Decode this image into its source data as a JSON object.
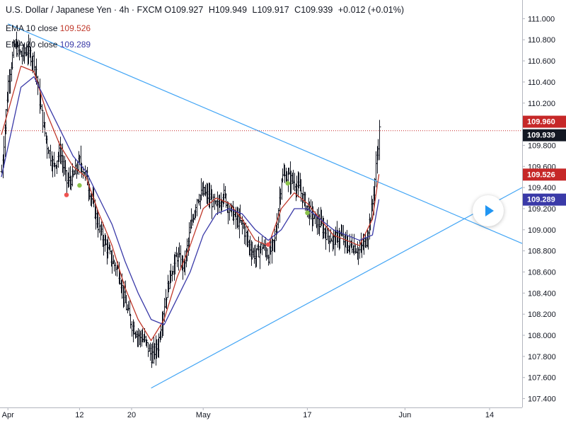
{
  "header": {
    "symbol_title": "U.S. Dollar / Japanese Yen · 4h · FXCM",
    "ohlc": [
      {
        "label": "O",
        "value": "109.927"
      },
      {
        "label": "H",
        "value": "109.949"
      },
      {
        "label": "L",
        "value": "109.917"
      },
      {
        "label": "C",
        "value": "109.939"
      }
    ],
    "change": "+0.012 (+0.01%)"
  },
  "indicators": [
    {
      "label": "EMA 10 close",
      "value": "109.526",
      "color": "#c0392b"
    },
    {
      "label": "EMA 20 close",
      "value": "109.289",
      "color": "#3a3aa8"
    }
  ],
  "badges": [
    {
      "text": "109.960",
      "price": 109.96,
      "bg": "#c62828",
      "fg": "#ffffff"
    },
    {
      "text": "109.939",
      "price": 109.939,
      "bg": "#131722",
      "fg": "#ffffff"
    },
    {
      "text": "109.526",
      "price": 109.526,
      "bg": "#c62828",
      "fg": "#ffffff"
    },
    {
      "text": "109.289",
      "price": 109.289,
      "bg": "#3a3aa8",
      "fg": "#ffffff"
    }
  ],
  "chart_data": {
    "type": "line",
    "title": "U.S. Dollar / Japanese Yen · 4h · FXCM",
    "xlabel": "",
    "ylabel": "",
    "ylim": [
      107.35,
      111.15
    ],
    "y_ticks": [
      111.0,
      110.8,
      110.6,
      110.4,
      110.2,
      110.0,
      109.8,
      109.6,
      109.4,
      109.2,
      109.0,
      108.8,
      108.6,
      108.4,
      108.2,
      108.0,
      107.8,
      107.6,
      107.4
    ],
    "y_tick_labels": [
      "111.000",
      "110.800",
      "110.600",
      "110.400",
      "110.200",
      "110.000",
      "109.800",
      "109.600",
      "109.400",
      "109.200",
      "109.000",
      "108.800",
      "108.600",
      "108.400",
      "108.200",
      "108.000",
      "107.800",
      "107.600",
      "107.400"
    ],
    "x_range": [
      "2021-03-31",
      "2021-06-19"
    ],
    "x_ticks": [
      {
        "date": "2021-04-01",
        "label": "Apr"
      },
      {
        "date": "2021-04-12",
        "label": "12"
      },
      {
        "date": "2021-04-20",
        "label": "20"
      },
      {
        "date": "2021-05-01",
        "label": "May"
      },
      {
        "date": "2021-05-17",
        "label": "17"
      },
      {
        "date": "2021-06-01",
        "label": "Jun"
      },
      {
        "date": "2021-06-14",
        "label": "14"
      }
    ],
    "grid": false,
    "price_path": [
      {
        "date": "2021-03-31",
        "close": 109.55
      },
      {
        "date": "2021-04-01",
        "close": 110.4
      },
      {
        "date": "2021-04-02",
        "close": 110.75
      },
      {
        "date": "2021-04-03",
        "close": 110.65
      },
      {
        "date": "2021-04-04",
        "close": 110.7
      },
      {
        "date": "2021-04-05",
        "close": 110.6
      },
      {
        "date": "2021-04-06",
        "close": 110.15
      },
      {
        "date": "2021-04-07",
        "close": 109.8
      },
      {
        "date": "2021-04-08",
        "close": 109.6
      },
      {
        "date": "2021-04-09",
        "close": 109.75
      },
      {
        "date": "2021-04-10",
        "close": 109.45
      },
      {
        "date": "2021-04-11",
        "close": 109.5
      },
      {
        "date": "2021-04-12",
        "close": 109.65
      },
      {
        "date": "2021-04-13",
        "close": 109.5
      },
      {
        "date": "2021-04-14",
        "close": 109.25
      },
      {
        "date": "2021-04-15",
        "close": 109.0
      },
      {
        "date": "2021-04-16",
        "close": 108.85
      },
      {
        "date": "2021-04-17",
        "close": 108.7
      },
      {
        "date": "2021-04-18",
        "close": 108.6
      },
      {
        "date": "2021-04-19",
        "close": 108.3
      },
      {
        "date": "2021-04-20",
        "close": 108.1
      },
      {
        "date": "2021-04-21",
        "close": 108.0
      },
      {
        "date": "2021-04-22",
        "close": 107.95
      },
      {
        "date": "2021-04-23",
        "close": 107.8
      },
      {
        "date": "2021-04-24",
        "close": 107.9
      },
      {
        "date": "2021-04-25",
        "close": 108.3
      },
      {
        "date": "2021-04-26",
        "close": 108.6
      },
      {
        "date": "2021-04-27",
        "close": 108.75
      },
      {
        "date": "2021-04-28",
        "close": 108.65
      },
      {
        "date": "2021-04-29",
        "close": 109.0
      },
      {
        "date": "2021-04-30",
        "close": 109.3
      },
      {
        "date": "2021-05-01",
        "close": 109.35
      },
      {
        "date": "2021-05-02",
        "close": 109.3
      },
      {
        "date": "2021-05-03",
        "close": 109.2
      },
      {
        "date": "2021-05-04",
        "close": 109.35
      },
      {
        "date": "2021-05-05",
        "close": 109.2
      },
      {
        "date": "2021-05-06",
        "close": 109.1
      },
      {
        "date": "2021-05-07",
        "close": 109.05
      },
      {
        "date": "2021-05-08",
        "close": 108.85
      },
      {
        "date": "2021-05-09",
        "close": 108.75
      },
      {
        "date": "2021-05-10",
        "close": 108.85
      },
      {
        "date": "2021-05-11",
        "close": 108.75
      },
      {
        "date": "2021-05-12",
        "close": 108.9
      },
      {
        "date": "2021-05-13",
        "close": 109.5
      },
      {
        "date": "2021-05-14",
        "close": 109.5
      },
      {
        "date": "2021-05-15",
        "close": 109.45
      },
      {
        "date": "2021-05-16",
        "close": 109.35
      },
      {
        "date": "2021-05-17",
        "close": 109.2
      },
      {
        "date": "2021-05-18",
        "close": 109.1
      },
      {
        "date": "2021-05-19",
        "close": 109.05
      },
      {
        "date": "2021-05-20",
        "close": 108.95
      },
      {
        "date": "2021-05-21",
        "close": 108.9
      },
      {
        "date": "2021-05-22",
        "close": 108.95
      },
      {
        "date": "2021-05-23",
        "close": 108.85
      },
      {
        "date": "2021-05-24",
        "close": 108.85
      },
      {
        "date": "2021-05-25",
        "close": 108.8
      },
      {
        "date": "2021-05-26",
        "close": 108.9
      },
      {
        "date": "2021-05-27",
        "close": 109.25
      },
      {
        "date": "2021-05-28",
        "close": 109.939
      }
    ],
    "series": [
      {
        "name": "EMA 10 close",
        "color": "#c0392b",
        "values": [
          {
            "date": "2021-03-31",
            "value": 109.9
          },
          {
            "date": "2021-04-03",
            "value": 110.55
          },
          {
            "date": "2021-04-05",
            "value": 110.5
          },
          {
            "date": "2021-04-07",
            "value": 110.1
          },
          {
            "date": "2021-04-09",
            "value": 109.8
          },
          {
            "date": "2021-04-11",
            "value": 109.6
          },
          {
            "date": "2021-04-13",
            "value": 109.5
          },
          {
            "date": "2021-04-15",
            "value": 109.15
          },
          {
            "date": "2021-04-17",
            "value": 108.85
          },
          {
            "date": "2021-04-19",
            "value": 108.45
          },
          {
            "date": "2021-04-21",
            "value": 108.15
          },
          {
            "date": "2021-04-23",
            "value": 107.95
          },
          {
            "date": "2021-04-25",
            "value": 108.15
          },
          {
            "date": "2021-04-27",
            "value": 108.55
          },
          {
            "date": "2021-04-29",
            "value": 108.85
          },
          {
            "date": "2021-05-01",
            "value": 109.2
          },
          {
            "date": "2021-05-03",
            "value": 109.3
          },
          {
            "date": "2021-05-05",
            "value": 109.25
          },
          {
            "date": "2021-05-07",
            "value": 109.1
          },
          {
            "date": "2021-05-09",
            "value": 108.9
          },
          {
            "date": "2021-05-11",
            "value": 108.85
          },
          {
            "date": "2021-05-13",
            "value": 109.2
          },
          {
            "date": "2021-05-15",
            "value": 109.35
          },
          {
            "date": "2021-05-17",
            "value": 109.25
          },
          {
            "date": "2021-05-19",
            "value": 109.1
          },
          {
            "date": "2021-05-21",
            "value": 108.95
          },
          {
            "date": "2021-05-23",
            "value": 108.9
          },
          {
            "date": "2021-05-25",
            "value": 108.85
          },
          {
            "date": "2021-05-27",
            "value": 109.1
          },
          {
            "date": "2021-05-28",
            "value": 109.526
          }
        ]
      },
      {
        "name": "EMA 20 close",
        "color": "#3a3aa8",
        "values": [
          {
            "date": "2021-03-31",
            "value": 109.5
          },
          {
            "date": "2021-04-03",
            "value": 110.35
          },
          {
            "date": "2021-04-05",
            "value": 110.45
          },
          {
            "date": "2021-04-07",
            "value": 110.2
          },
          {
            "date": "2021-04-09",
            "value": 109.95
          },
          {
            "date": "2021-04-11",
            "value": 109.7
          },
          {
            "date": "2021-04-13",
            "value": 109.55
          },
          {
            "date": "2021-04-15",
            "value": 109.3
          },
          {
            "date": "2021-04-17",
            "value": 109.05
          },
          {
            "date": "2021-04-19",
            "value": 108.7
          },
          {
            "date": "2021-04-21",
            "value": 108.4
          },
          {
            "date": "2021-04-23",
            "value": 108.15
          },
          {
            "date": "2021-04-25",
            "value": 108.1
          },
          {
            "date": "2021-04-27",
            "value": 108.35
          },
          {
            "date": "2021-04-29",
            "value": 108.6
          },
          {
            "date": "2021-05-01",
            "value": 108.95
          },
          {
            "date": "2021-05-03",
            "value": 109.15
          },
          {
            "date": "2021-05-05",
            "value": 109.2
          },
          {
            "date": "2021-05-07",
            "value": 109.15
          },
          {
            "date": "2021-05-09",
            "value": 109.0
          },
          {
            "date": "2021-05-11",
            "value": 108.9
          },
          {
            "date": "2021-05-13",
            "value": 109.0
          },
          {
            "date": "2021-05-15",
            "value": 109.2
          },
          {
            "date": "2021-05-17",
            "value": 109.2
          },
          {
            "date": "2021-05-19",
            "value": 109.1
          },
          {
            "date": "2021-05-21",
            "value": 109.0
          },
          {
            "date": "2021-05-23",
            "value": 108.95
          },
          {
            "date": "2021-05-25",
            "value": 108.9
          },
          {
            "date": "2021-05-27",
            "value": 108.95
          },
          {
            "date": "2021-05-28",
            "value": 109.289
          }
        ]
      }
    ],
    "trendlines": [
      {
        "name": "descending-trendline",
        "from": {
          "date": "2021-04-01",
          "price": 110.95
        },
        "to": {
          "date": "2021-06-19",
          "price": 108.87
        },
        "color": "#42a5f5"
      },
      {
        "name": "ascending-trendline",
        "from": {
          "date": "2021-04-23",
          "price": 107.5
        },
        "to": {
          "date": "2021-06-19",
          "price": 109.4
        },
        "color": "#42a5f5"
      }
    ],
    "horizontal_line": {
      "price": 109.939,
      "color": "#c62828",
      "style": "dotted"
    },
    "markers": [
      {
        "date": "2021-04-10",
        "price": 109.33,
        "color": "#ef5350"
      },
      {
        "date": "2021-04-12",
        "price": 109.42,
        "color": "#8bc34a"
      },
      {
        "date": "2021-05-11",
        "price": 108.86,
        "color": "#ef5350"
      },
      {
        "date": "2021-05-14",
        "price": 109.44,
        "color": "#8bc34a"
      },
      {
        "date": "2021-05-17",
        "price": 109.16,
        "color": "#8bc34a"
      }
    ]
  }
}
